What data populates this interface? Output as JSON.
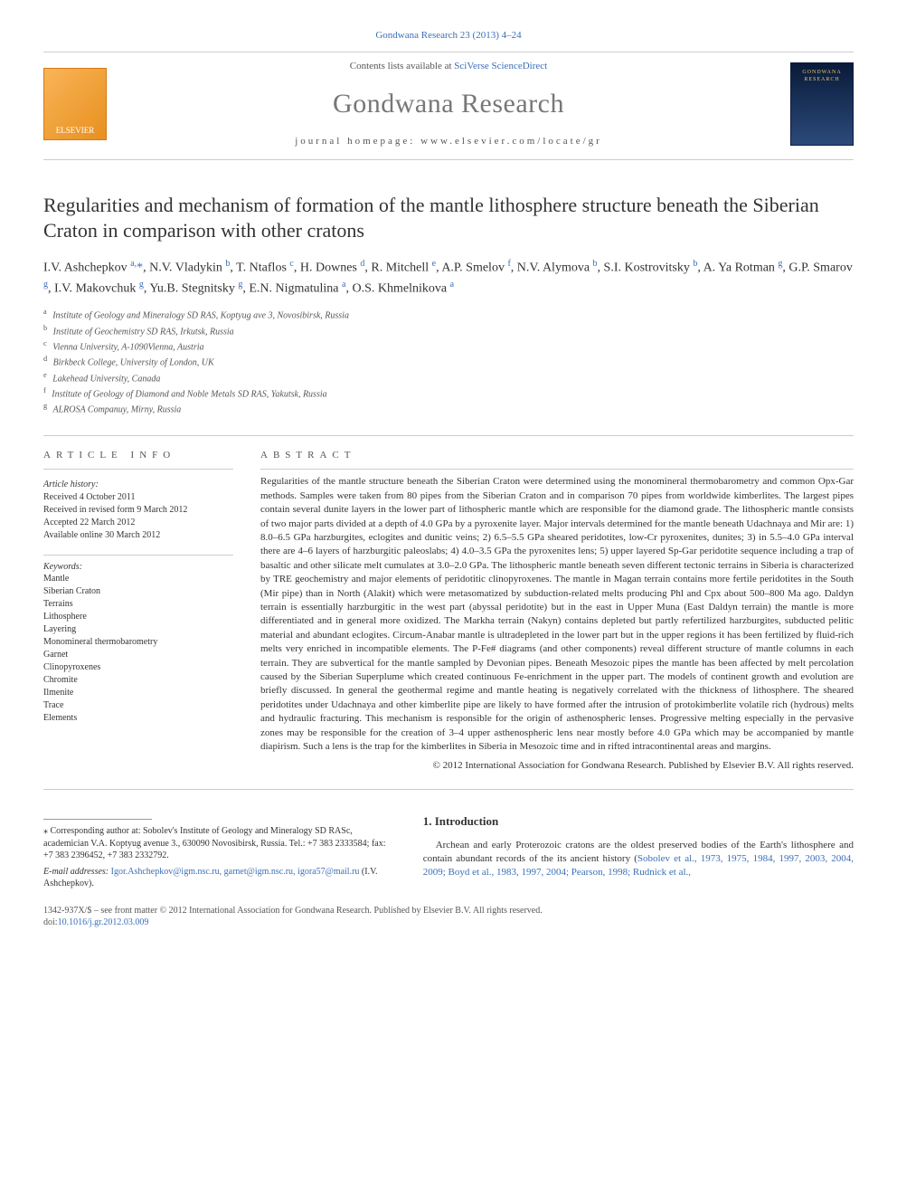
{
  "top_link": "Gondwana Research 23 (2013) 4–24",
  "header": {
    "contents_prefix": "Contents lists available at ",
    "contents_link": "SciVerse ScienceDirect",
    "journal_name": "Gondwana Research",
    "homepage_label": "journal homepage: www.elsevier.com/locate/gr",
    "elsevier_label": "ELSEVIER",
    "cover_label": "GONDWANA RESEARCH"
  },
  "title": "Regularities and mechanism of formation of the mantle lithosphere structure beneath the Siberian Craton in comparison with other cratons",
  "authors_html": "I.V. Ashchepkov <sup>a,</sup><span class='corr'>*</span>, N.V. Vladykin <sup>b</sup>, T. Ntaflos <sup>c</sup>, H. Downes <sup>d</sup>, R. Mitchell <sup>e</sup>, A.P. Smelov <sup>f</sup>, N.V. Alymova <sup>b</sup>, S.I. Kostrovitsky <sup>b</sup>, A. Ya Rotman <sup>g</sup>, G.P. Smarov <sup>g</sup>, I.V. Makovchuk <sup>g</sup>, Yu.B. Stegnitsky <sup>g</sup>, E.N. Nigmatulina <sup>a</sup>, O.S. Khmelnikova <sup>a</sup>",
  "affiliations": [
    {
      "sup": "a",
      "text": "Institute of Geology and Mineralogy SD RAS, Koptyug ave 3, Novosibirsk, Russia"
    },
    {
      "sup": "b",
      "text": "Institute of Geochemistry SD RAS, Irkutsk, Russia"
    },
    {
      "sup": "c",
      "text": "Vienna University, A-1090Vienna, Austria"
    },
    {
      "sup": "d",
      "text": "Birkbeck College, University of London, UK"
    },
    {
      "sup": "e",
      "text": "Lakehead University, Canada"
    },
    {
      "sup": "f",
      "text": "Institute of Geology of Diamond and Noble Metals SD RAS, Yakutsk, Russia"
    },
    {
      "sup": "g",
      "text": "ALROSA Companuy, Mirny, Russia"
    }
  ],
  "article_info": {
    "label": "ARTICLE INFO",
    "history_label": "Article history:",
    "history": [
      "Received 4 October 2011",
      "Received in revised form 9 March 2012",
      "Accepted 22 March 2012",
      "Available online 30 March 2012"
    ],
    "keywords_label": "Keywords:",
    "keywords": [
      "Mantle",
      "Siberian Craton",
      "Terrains",
      "Lithosphere",
      "Layering",
      "Monomineral thermobarometry",
      "Garnet",
      "Clinopyroxenes",
      "Chromite",
      "Ilmenite",
      "Trace",
      "Elements"
    ]
  },
  "abstract": {
    "label": "ABSTRACT",
    "text": "Regularities of the mantle structure beneath the Siberian Craton were determined using the monomineral thermobarometry and common Opx-Gar methods. Samples were taken from 80 pipes from the Siberian Craton and in comparison 70 pipes from worldwide kimberlites. The largest pipes contain several dunite layers in the lower part of lithospheric mantle which are responsible for the diamond grade. The lithospheric mantle consists of two major parts divided at a depth of 4.0 GPa by a pyroxenite layer. Major intervals determined for the mantle beneath Udachnaya and Mir are: 1) 8.0–6.5 GPa harzburgites, eclogites and dunitic veins; 2) 6.5–5.5 GPa sheared peridotites, low-Cr pyroxenites, dunites; 3) in 5.5–4.0 GPa interval there are 4–6 layers of harzburgitic paleoslabs; 4) 4.0–3.5 GPa the pyroxenites lens; 5) upper layered Sp-Gar peridotite sequence including a trap of basaltic and other silicate melt cumulates at 3.0–2.0 GPa. The lithospheric mantle beneath seven different tectonic terrains in Siberia is characterized by TRE geochemistry and major elements of peridotitic clinopyroxenes. The mantle in Magan terrain contains more fertile peridotites in the South (Mir pipe) than in North (Alakit) which were metasomatized by subduction-related melts producing Phl and Cpx about 500–800 Ma ago. Daldyn terrain is essentially harzburgitic in the west part (abyssal peridotite) but in the east in Upper Muna (East Daldyn terrain) the mantle is more differentiated and in general more oxidized. The Markha terrain (Nakyn) contains depleted but partly refertilized harzburgites, subducted pelitic material and abundant eclogites. Circum-Anabar mantle is ultradepleted in the lower part but in the upper regions it has been fertilized by fluid-rich melts very enriched in incompatible elements. The P-Fe# diagrams (and other components) reveal different structure of mantle columns in each terrain. They are subvertical for the mantle sampled by Devonian pipes. Beneath Mesozoic pipes the mantle has been affected by melt percolation caused by the Siberian Superplume which created continuous Fe-enrichment in the upper part. The models of continent growth and evolution are briefly discussed. In general the geothermal regime and mantle heating is negatively correlated with the thickness of lithosphere. The sheared peridotites under Udachnaya and other kimberlite pipe are likely to have formed after the intrusion of protokimberlite volatile rich (hydrous) melts and hydraulic fracturing. This mechanism is responsible for the origin of asthenospheric lenses. Progressive melting especially in the pervasive zones may be responsible for the creation of 3–4 upper asthenospheric lens near mostly before 4.0 GPa which may be accompanied by mantle diapirism. Such a lens is the trap for the kimberlites in Siberia in Mesozoic time and in rifted intracontinental areas and margins.",
    "copyright": "© 2012 International Association for Gondwana Research. Published by Elsevier B.V. All rights reserved."
  },
  "correspondence": {
    "star": "⁎",
    "text": "Corresponding author at: Sobolev's Institute of Geology and Mineralogy SD RASc, academician V.A. Koptyug avenue 3., 630090 Novosibirsk, Russia. Tel.: +7 383 2333584; fax: +7 383 2396452, +7 383 2332792.",
    "email_label": "E-mail addresses: ",
    "emails": "Igor.Ashchepkov@igm.nsc.ru, garnet@igm.nsc.ru, igora57@mail.ru",
    "email_attr": " (I.V. Ashchepkov)."
  },
  "intro": {
    "heading": "1. Introduction",
    "para_plain": "Archean and early Proterozoic cratons are the oldest preserved bodies of the Earth's lithosphere and contain abundant records of the its ancient history (",
    "para_refs": "Sobolev et al., 1973, 1975, 1984, 1997, 2003, 2004, 2009; Boyd et al., 1983, 1997, 2004; Pearson, 1998; Rudnick et al.,"
  },
  "footer": {
    "issn_line": "1342-937X/$ – see front matter © 2012 International Association for Gondwana Research. Published by Elsevier B.V. All rights reserved.",
    "doi_prefix": "doi:",
    "doi": "10.1016/j.gr.2012.03.009"
  },
  "colors": {
    "link": "#3a6fb7",
    "rule": "#cccccc",
    "text": "#333333",
    "muted": "#555555"
  }
}
